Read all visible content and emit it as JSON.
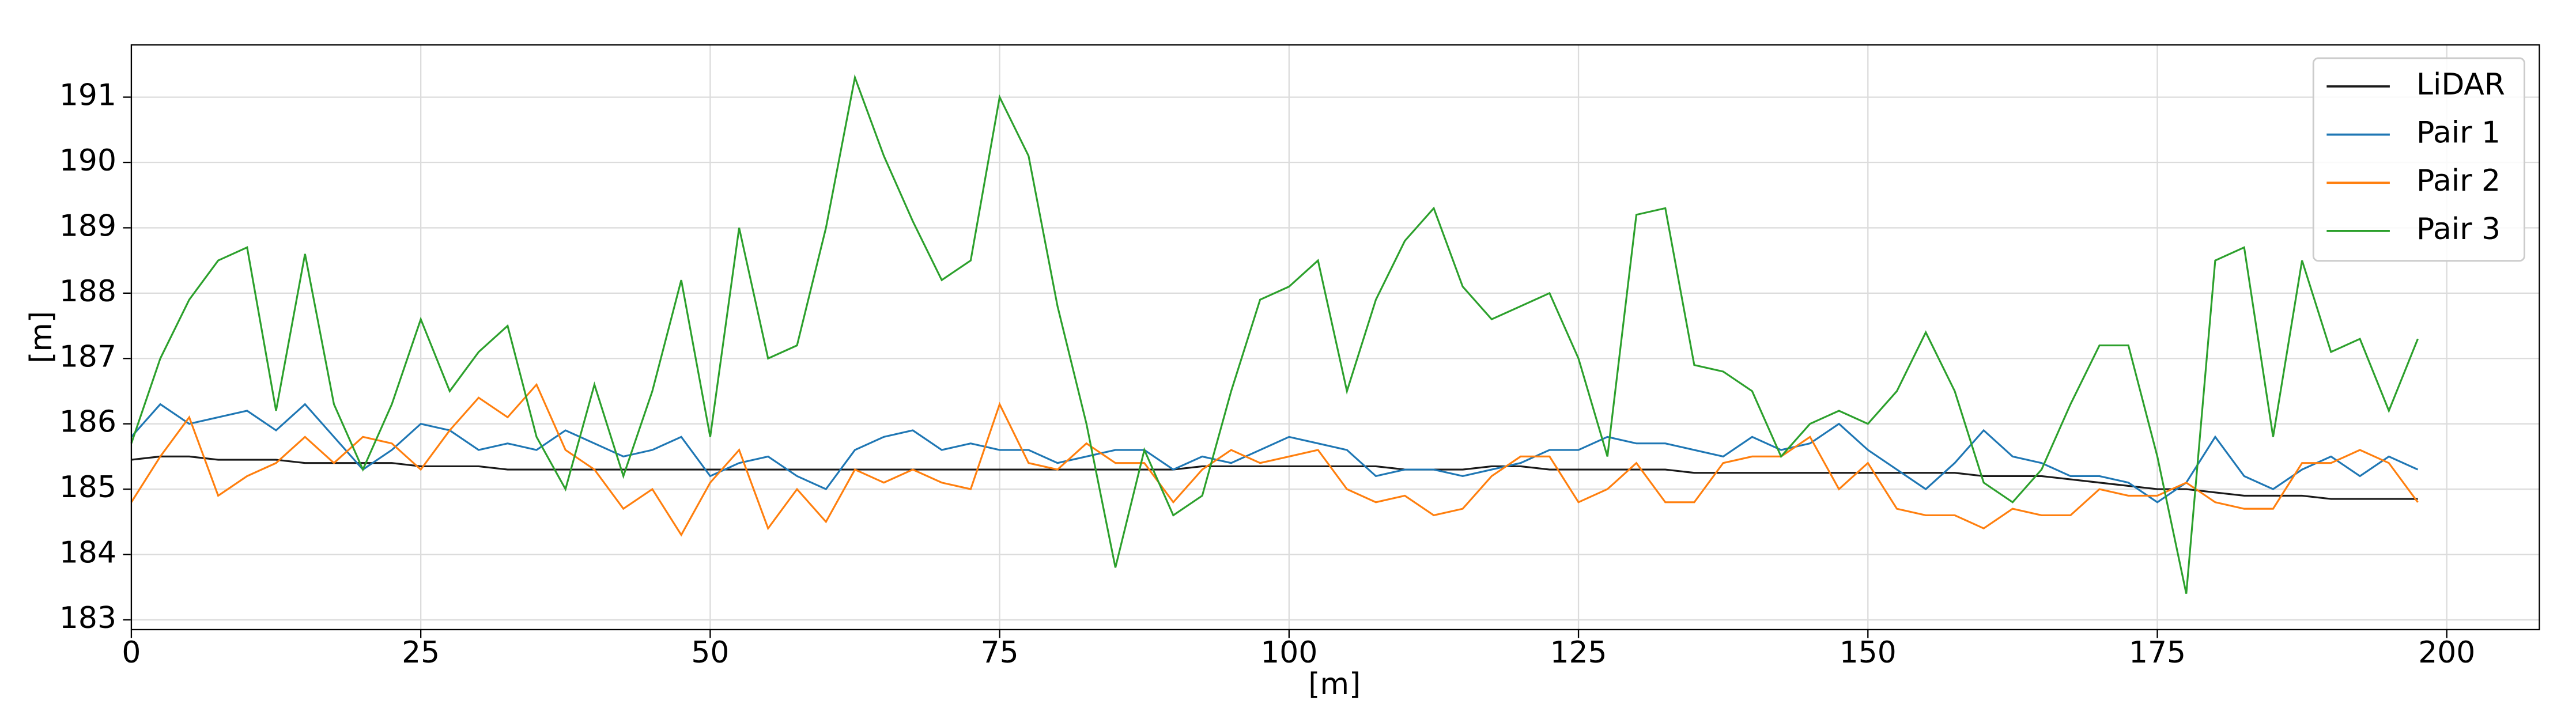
{
  "chart_data": {
    "type": "line",
    "xlabel": "[m]",
    "ylabel": "[m]",
    "x": [
      0,
      2.5,
      5,
      7.5,
      10,
      12.5,
      15,
      17.5,
      20,
      22.5,
      25,
      27.5,
      30,
      32.5,
      35,
      37.5,
      40,
      42.5,
      45,
      47.5,
      50,
      52.5,
      55,
      57.5,
      60,
      62.5,
      65,
      67.5,
      70,
      72.5,
      75,
      77.5,
      80,
      82.5,
      85,
      87.5,
      90,
      92.5,
      95,
      97.5,
      100,
      102.5,
      105,
      107.5,
      110,
      112.5,
      115,
      117.5,
      120,
      122.5,
      125,
      127.5,
      130,
      132.5,
      135,
      137.5,
      140,
      142.5,
      145,
      147.5,
      150,
      152.5,
      155,
      157.5,
      160,
      162.5,
      165,
      167.5,
      170,
      172.5,
      175,
      177.5,
      180,
      182.5,
      185,
      187.5,
      190,
      192.5,
      195,
      197.5
    ],
    "series": [
      {
        "name": "LiDAR",
        "color": "#1a1a1a",
        "values": [
          185.45,
          185.5,
          185.5,
          185.45,
          185.45,
          185.45,
          185.4,
          185.4,
          185.4,
          185.4,
          185.35,
          185.35,
          185.35,
          185.3,
          185.3,
          185.3,
          185.3,
          185.3,
          185.3,
          185.3,
          185.3,
          185.3,
          185.3,
          185.3,
          185.3,
          185.3,
          185.3,
          185.3,
          185.3,
          185.3,
          185.3,
          185.3,
          185.3,
          185.3,
          185.3,
          185.3,
          185.3,
          185.35,
          185.35,
          185.35,
          185.35,
          185.35,
          185.35,
          185.35,
          185.3,
          185.3,
          185.3,
          185.35,
          185.35,
          185.3,
          185.3,
          185.3,
          185.3,
          185.3,
          185.25,
          185.25,
          185.25,
          185.25,
          185.25,
          185.25,
          185.25,
          185.25,
          185.25,
          185.25,
          185.2,
          185.2,
          185.2,
          185.15,
          185.1,
          185.05,
          185.0,
          185.0,
          184.95,
          184.9,
          184.9,
          184.9,
          184.85,
          184.85,
          184.85,
          184.85
        ]
      },
      {
        "name": "Pair 1",
        "color": "#1f77b4",
        "values": [
          185.8,
          186.3,
          186.0,
          186.1,
          186.2,
          185.9,
          186.3,
          185.8,
          185.3,
          185.6,
          186.0,
          185.9,
          185.6,
          185.7,
          185.6,
          185.9,
          185.7,
          185.5,
          185.6,
          185.8,
          185.2,
          185.4,
          185.5,
          185.2,
          185.0,
          185.6,
          185.8,
          185.9,
          185.6,
          185.7,
          185.6,
          185.6,
          185.4,
          185.5,
          185.6,
          185.6,
          185.3,
          185.5,
          185.4,
          185.6,
          185.8,
          185.7,
          185.6,
          185.2,
          185.3,
          185.3,
          185.2,
          185.3,
          185.4,
          185.6,
          185.6,
          185.8,
          185.7,
          185.7,
          185.6,
          185.5,
          185.8,
          185.6,
          185.7,
          186.0,
          185.6,
          185.3,
          185.0,
          185.4,
          185.9,
          185.5,
          185.4,
          185.2,
          185.2,
          185.1,
          184.8,
          185.1,
          185.8,
          185.2,
          185.0,
          185.3,
          185.5,
          185.2,
          185.5,
          185.3
        ]
      },
      {
        "name": "Pair 2",
        "color": "#ff7f0e",
        "values": [
          184.8,
          185.5,
          186.1,
          184.9,
          185.2,
          185.4,
          185.8,
          185.4,
          185.8,
          185.7,
          185.3,
          185.9,
          186.4,
          186.1,
          186.6,
          185.6,
          185.3,
          184.7,
          185.0,
          184.3,
          185.1,
          185.6,
          184.4,
          185.0,
          184.5,
          185.3,
          185.1,
          185.3,
          185.1,
          185.0,
          186.3,
          185.4,
          185.3,
          185.7,
          185.4,
          185.4,
          184.8,
          185.3,
          185.6,
          185.4,
          185.5,
          185.6,
          185.0,
          184.8,
          184.9,
          184.6,
          184.7,
          185.2,
          185.5,
          185.5,
          184.8,
          185.0,
          185.4,
          184.8,
          184.8,
          185.4,
          185.5,
          185.5,
          185.8,
          185.0,
          185.4,
          184.7,
          184.6,
          184.6,
          184.4,
          184.7,
          184.6,
          184.6,
          185.0,
          184.9,
          184.9,
          185.1,
          184.8,
          184.7,
          184.7,
          185.4,
          185.4,
          185.6,
          185.4,
          184.8
        ]
      },
      {
        "name": "Pair 3",
        "color": "#2ca02c",
        "values": [
          185.7,
          187.0,
          187.9,
          188.5,
          188.7,
          186.2,
          188.6,
          186.3,
          185.3,
          186.3,
          187.6,
          186.5,
          187.1,
          187.5,
          185.8,
          185.0,
          186.6,
          185.2,
          186.5,
          188.2,
          185.8,
          189.0,
          187.0,
          187.2,
          189.0,
          191.3,
          190.1,
          189.1,
          188.2,
          188.5,
          191.0,
          190.1,
          187.8,
          186.0,
          183.8,
          185.6,
          184.6,
          184.9,
          186.5,
          187.9,
          188.1,
          188.5,
          186.5,
          187.9,
          188.8,
          189.3,
          188.1,
          187.6,
          187.8,
          188.0,
          187.0,
          185.5,
          189.2,
          189.3,
          186.9,
          186.8,
          186.5,
          185.5,
          186.0,
          186.2,
          186.0,
          186.5,
          187.4,
          186.5,
          185.1,
          184.8,
          185.3,
          186.3,
          187.2,
          187.2,
          185.5,
          183.4,
          188.5,
          188.7,
          185.8,
          188.5,
          187.1,
          187.3,
          186.2,
          187.3
        ]
      }
    ],
    "xlim": [
      0,
      208
    ],
    "ylim": [
      182.85,
      191.8
    ],
    "xticks": [
      0,
      25,
      50,
      75,
      100,
      125,
      150,
      175,
      200
    ],
    "yticks": [
      183,
      184,
      185,
      186,
      187,
      188,
      189,
      190,
      191
    ],
    "grid": true,
    "legend": "upper right"
  }
}
